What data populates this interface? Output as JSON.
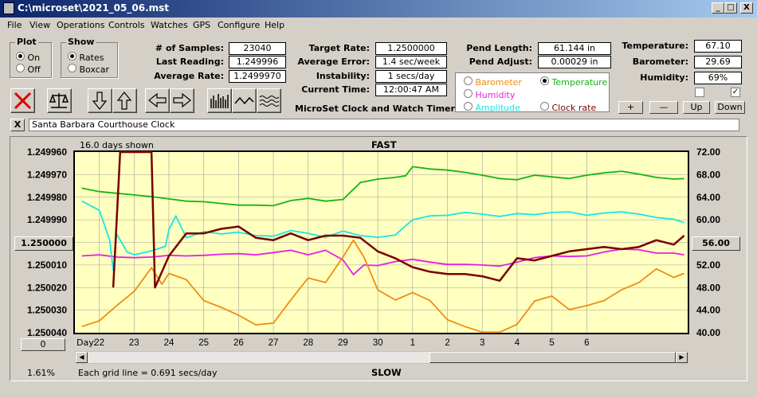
{
  "window": {
    "title": "C:\\microset\\2021_05_06.mst",
    "min": "_",
    "max": "□",
    "close": "X"
  },
  "menu": [
    "File",
    "View",
    "Operations",
    "Controls",
    "Watches",
    "GPS",
    "Configure",
    "Help"
  ],
  "plot_group": {
    "label": "Plot",
    "on": "On",
    "off": "Off"
  },
  "show_group": {
    "label": "Show",
    "rates": "Rates",
    "boxcar": "Boxcar"
  },
  "stats": {
    "samples_label": "# of Samples:",
    "samples": "23040",
    "last_label": "Last Reading:",
    "last": "1.249996",
    "avg_label": "Average Rate:",
    "avg": "1.2499970"
  },
  "target": {
    "rate_label": "Target Rate:",
    "rate": "1.2500000",
    "error_label": "Average Error:",
    "error": "1.4 sec/week",
    "instab_label": "Instability:",
    "instab": "1 secs/day",
    "time_label": "Current Time:",
    "time": "12:00:47 AM",
    "app_name": "MicroSet Clock and Watch Timer"
  },
  "pend": {
    "length_label": "Pend Length:",
    "length": "61.144 in",
    "adjust_label": "Pend Adjust:",
    "adjust": "0.00029 in"
  },
  "sensors": {
    "temp_label": "Temperature:",
    "temp": "67.10",
    "baro_label": "Barometer:",
    "baro": "29.69",
    "hum_label": "Humidity:",
    "hum": "69%"
  },
  "series_select": {
    "barometer": "Barometer",
    "temperature": "Temperature",
    "humidity": "Humidity",
    "amplitude": "Amplitude",
    "clock_rate": "Clock rate"
  },
  "buttons": {
    "plus": "+",
    "minus": "—",
    "up": "Up",
    "down": "Down",
    "close_x": "X",
    "zero": "0"
  },
  "clock_name": "Santa Barbara Courthouse Clock",
  "colors": {
    "barometer": "#f08c10",
    "temperature": "#18b418",
    "humidity": "#e61ee6",
    "amplitude": "#19e6e6",
    "clock_rate": "#780000",
    "plot_bg": "#ffffc0"
  },
  "chart": {
    "days_shown": "16.0 days shown",
    "fast": "FAST",
    "slow": "SLOW",
    "grid_note": "Each grid line = 0.691 secs/day",
    "pct": "1.61%",
    "day_label": "Day:",
    "left_btn": "1.250000",
    "right_btn": "56.00"
  },
  "chart_data": {
    "type": "line",
    "x": {
      "label": "Day:",
      "ticks": [
        "22",
        "23",
        "24",
        "25",
        "26",
        "27",
        "28",
        "29",
        "30",
        "1",
        "2",
        "3",
        "4",
        "5",
        "6"
      ]
    },
    "y_left": {
      "ticks": [
        "1.249960",
        "1.249970",
        "1.249980",
        "1.249990",
        "1.250000",
        "1.250010",
        "1.250020",
        "1.250030",
        "1.250040"
      ],
      "range": [
        1.24996,
        1.25004
      ]
    },
    "y_right": {
      "ticks": [
        "72.00",
        "68.00",
        "64.00",
        "60.00",
        "56.00",
        "52.00",
        "48.00",
        "44.00",
        "40.00"
      ],
      "range": [
        40,
        72
      ]
    },
    "series": [
      {
        "name": "Temperature",
        "color": "#18b418",
        "points": [
          [
            21.5,
            65.6
          ],
          [
            22,
            65.0
          ],
          [
            22.5,
            64.7
          ],
          [
            23,
            64.4
          ],
          [
            23.5,
            64.1
          ],
          [
            24,
            63.7
          ],
          [
            24.5,
            63.3
          ],
          [
            25,
            63.2
          ],
          [
            25.5,
            62.9
          ],
          [
            26,
            62.6
          ],
          [
            26.5,
            62.6
          ],
          [
            27,
            62.5
          ],
          [
            27.5,
            63.4
          ],
          [
            28,
            63.8
          ],
          [
            28.5,
            63.3
          ],
          [
            29,
            63.6
          ],
          [
            29.5,
            66.6
          ],
          [
            30,
            67.2
          ],
          [
            30.5,
            67.5
          ],
          [
            30.8,
            67.8
          ],
          [
            31,
            69.4
          ],
          [
            31.5,
            69.0
          ],
          [
            32,
            68.8
          ],
          [
            32.5,
            68.4
          ],
          [
            33,
            67.9
          ],
          [
            33.5,
            67.3
          ],
          [
            34,
            67.1
          ],
          [
            34.5,
            67.9
          ],
          [
            35,
            67.6
          ],
          [
            35.5,
            67.3
          ],
          [
            36,
            67.9
          ],
          [
            36.5,
            68.3
          ],
          [
            37,
            68.6
          ],
          [
            37.5,
            68.1
          ],
          [
            38,
            67.5
          ],
          [
            38.5,
            67.2
          ],
          [
            38.8,
            67.3
          ]
        ]
      },
      {
        "name": "Humidity",
        "color": "#e61ee6",
        "points": [
          [
            21.5,
            53.6
          ],
          [
            22,
            53.8
          ],
          [
            22.5,
            53.4
          ],
          [
            23,
            53.3
          ],
          [
            23.5,
            53.4
          ],
          [
            24,
            53.7
          ],
          [
            24.5,
            53.6
          ],
          [
            25,
            53.7
          ],
          [
            25.5,
            53.9
          ],
          [
            26,
            54.0
          ],
          [
            26.5,
            53.8
          ],
          [
            27,
            54.2
          ],
          [
            27.5,
            54.6
          ],
          [
            28,
            53.8
          ],
          [
            28.5,
            54.6
          ],
          [
            29,
            52.9
          ],
          [
            29.3,
            50.3
          ],
          [
            29.6,
            52.0
          ],
          [
            30,
            51.9
          ],
          [
            30.5,
            52.6
          ],
          [
            31,
            53.0
          ],
          [
            31.5,
            52.5
          ],
          [
            32,
            52.1
          ],
          [
            32.5,
            52.1
          ],
          [
            33,
            52.0
          ],
          [
            33.5,
            51.8
          ],
          [
            34,
            52.5
          ],
          [
            34.5,
            53.3
          ],
          [
            35,
            53.6
          ],
          [
            35.5,
            53.5
          ],
          [
            36,
            53.6
          ],
          [
            36.5,
            54.3
          ],
          [
            37,
            54.8
          ],
          [
            37.5,
            54.7
          ],
          [
            38,
            54.1
          ],
          [
            38.5,
            54.1
          ],
          [
            38.8,
            53.8
          ]
        ]
      },
      {
        "name": "Amplitude",
        "color": "#19e6e6",
        "points": [
          [
            21.5,
            63.3
          ],
          [
            22,
            61.7
          ],
          [
            22.3,
            56.4
          ],
          [
            22.4,
            51.0
          ],
          [
            22.5,
            57.5
          ],
          [
            22.8,
            54.3
          ],
          [
            23,
            53.8
          ],
          [
            23.3,
            54.2
          ],
          [
            23.5,
            54.5
          ],
          [
            23.9,
            55.3
          ],
          [
            24,
            58.3
          ],
          [
            24.2,
            60.7
          ],
          [
            24.5,
            56.8
          ],
          [
            25,
            57.9
          ],
          [
            25.5,
            57.5
          ],
          [
            26,
            57.8
          ],
          [
            26.5,
            57.2
          ],
          [
            27,
            57.1
          ],
          [
            27.5,
            58.1
          ],
          [
            28,
            57.6
          ],
          [
            28.5,
            56.9
          ],
          [
            29,
            58.0
          ],
          [
            29.5,
            57.2
          ],
          [
            30,
            56.9
          ],
          [
            30.5,
            57.3
          ],
          [
            31,
            60.0
          ],
          [
            31.5,
            60.7
          ],
          [
            32,
            60.8
          ],
          [
            32.5,
            61.3
          ],
          [
            33,
            61.0
          ],
          [
            33.5,
            60.6
          ],
          [
            34,
            61.1
          ],
          [
            34.5,
            60.9
          ],
          [
            35,
            61.3
          ],
          [
            35.5,
            61.4
          ],
          [
            36,
            60.8
          ],
          [
            36.5,
            61.2
          ],
          [
            37,
            61.4
          ],
          [
            37.5,
            61.0
          ],
          [
            38,
            60.4
          ],
          [
            38.5,
            60.1
          ],
          [
            38.8,
            59.5
          ]
        ]
      },
      {
        "name": "Barometer",
        "color": "#f08c10",
        "points": [
          [
            21.5,
            41.1
          ],
          [
            22,
            42.1
          ],
          [
            22.5,
            44.8
          ],
          [
            23,
            47.3
          ],
          [
            23.5,
            51.5
          ],
          [
            23.8,
            48.6
          ],
          [
            24,
            50.5
          ],
          [
            24.5,
            49.4
          ],
          [
            25,
            45.7
          ],
          [
            25.5,
            44.5
          ],
          [
            26,
            43.1
          ],
          [
            26.5,
            41.4
          ],
          [
            27,
            41.7
          ],
          [
            27.5,
            45.8
          ],
          [
            28,
            49.7
          ],
          [
            28.5,
            48.9
          ],
          [
            29,
            53.4
          ],
          [
            29.3,
            56.4
          ],
          [
            29.6,
            53.4
          ],
          [
            30,
            47.6
          ],
          [
            30.5,
            45.8
          ],
          [
            31,
            47.1
          ],
          [
            31.5,
            45.7
          ],
          [
            32,
            42.3
          ],
          [
            32.5,
            41.1
          ],
          [
            33,
            40.1
          ],
          [
            33.5,
            40.1
          ],
          [
            34,
            41.5
          ],
          [
            34.5,
            45.6
          ],
          [
            35,
            46.5
          ],
          [
            35.5,
            44.1
          ],
          [
            36,
            44.8
          ],
          [
            36.5,
            45.7
          ],
          [
            37,
            47.6
          ],
          [
            37.5,
            48.9
          ],
          [
            38,
            51.3
          ],
          [
            38.5,
            49.8
          ],
          [
            38.8,
            50.5
          ]
        ]
      },
      {
        "name": "Clock rate",
        "color": "#780000",
        "points": [
          [
            22.4,
            1.25002
          ],
          [
            22.6,
            1.24996
          ],
          [
            23.5,
            1.24996
          ],
          [
            23.6,
            1.25002
          ],
          [
            24,
            1.250006
          ],
          [
            24.5,
            1.249996
          ],
          [
            25,
            1.249996
          ],
          [
            25.5,
            1.249994
          ],
          [
            26,
            1.249993
          ],
          [
            26.5,
            1.249998
          ],
          [
            27,
            1.249999
          ],
          [
            27.5,
            1.249996
          ],
          [
            28,
            1.249999
          ],
          [
            28.5,
            1.249997
          ],
          [
            29,
            1.249997
          ],
          [
            29.5,
            1.249998
          ],
          [
            30,
            1.250004
          ],
          [
            30.5,
            1.250007
          ],
          [
            31,
            1.250011
          ],
          [
            31.5,
            1.250013
          ],
          [
            32,
            1.250014
          ],
          [
            32.5,
            1.250014
          ],
          [
            33,
            1.250015
          ],
          [
            33.5,
            1.250017
          ],
          [
            34,
            1.250007
          ],
          [
            34.5,
            1.250008
          ],
          [
            35,
            1.250006
          ],
          [
            35.5,
            1.250004
          ],
          [
            36,
            1.250003
          ],
          [
            36.5,
            1.250002
          ],
          [
            37,
            1.250003
          ],
          [
            37.5,
            1.250002
          ],
          [
            38,
            1.249999
          ],
          [
            38.5,
            1.250001
          ],
          [
            38.8,
            1.249997
          ]
        ]
      }
    ]
  }
}
